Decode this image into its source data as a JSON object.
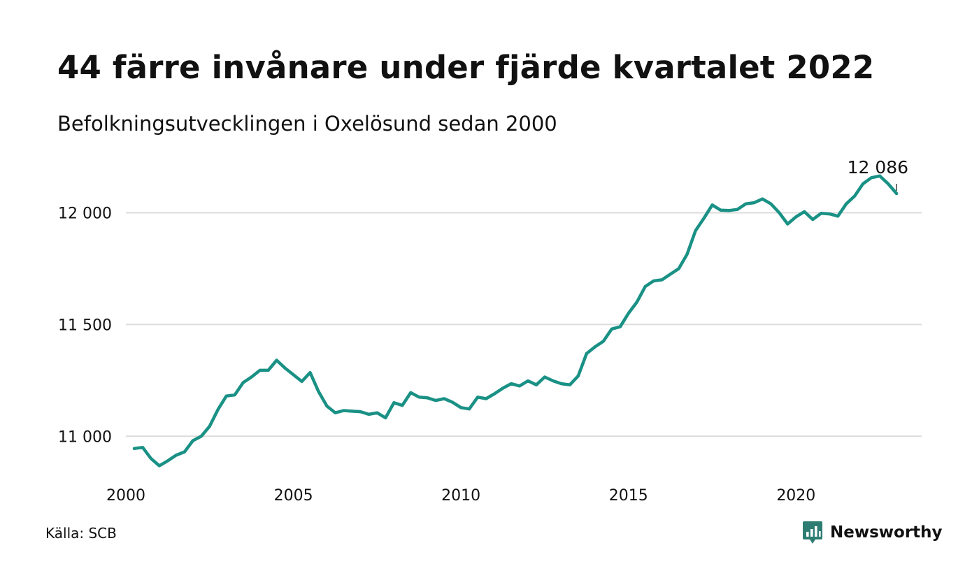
{
  "title": "44 färre invånare under fjärde kvartalet 2022",
  "subtitle": "Befolkningsutvecklingen i Oxelösund sedan 2000",
  "source": "Källa: SCB",
  "brand": {
    "name": "Newsworthy",
    "icon": "newsworthy-logo-icon"
  },
  "colors": {
    "line": "#1a9185",
    "grid": "#dcdcdc",
    "text": "#111111",
    "brand": "#2e7d73"
  },
  "chart_data": {
    "type": "line",
    "title": "44 färre invånare under fjärde kvartalet 2022",
    "subtitle": "Befolkningsutvecklingen i Oxelösund sedan 2000",
    "xlabel": "",
    "ylabel": "",
    "xlim": [
      2000,
      2023.75
    ],
    "ylim": [
      10810,
      12280
    ],
    "x_ticks": [
      2000,
      2005,
      2010,
      2015,
      2020
    ],
    "x_tick_labels": [
      "2000",
      "2005",
      "2010",
      "2015",
      "2020"
    ],
    "y_ticks": [
      11000,
      11500,
      12000
    ],
    "y_tick_labels": [
      "11 000",
      "11 500",
      "12 000"
    ],
    "grid": "horizontal",
    "end_label": "12 086",
    "series": [
      {
        "x": [
          2000.25,
          2000.5,
          2000.75,
          2001,
          2001.25,
          2001.5,
          2001.75,
          2002,
          2002.25,
          2002.5,
          2002.75,
          2003,
          2003.25,
          2003.5,
          2003.75,
          2004,
          2004.25,
          2004.5,
          2004.75,
          2005,
          2005.25,
          2005.5,
          2005.75,
          2006,
          2006.25,
          2006.5,
          2006.75,
          2007,
          2007.25,
          2007.5,
          2007.75,
          2008,
          2008.25,
          2008.5,
          2008.75,
          2009,
          2009.25,
          2009.5,
          2009.75,
          2010,
          2010.25,
          2010.5,
          2010.75,
          2011,
          2011.25,
          2011.5,
          2011.75,
          2012,
          2012.25,
          2012.5,
          2012.75,
          2013,
          2013.25,
          2013.5,
          2013.75,
          2014,
          2014.25,
          2014.5,
          2014.75,
          2015,
          2015.25,
          2015.5,
          2015.75,
          2016,
          2016.25,
          2016.5,
          2016.75,
          2017,
          2017.25,
          2017.5,
          2017.75,
          2018,
          2018.25,
          2018.5,
          2018.75,
          2019,
          2019.25,
          2019.5,
          2019.75,
          2020,
          2020.25,
          2020.5,
          2020.75,
          2021,
          2021.25,
          2021.5,
          2021.75,
          2022,
          2022.25,
          2022.5,
          2022.75,
          2023
        ],
        "values": [
          10945,
          10950,
          10900,
          10868,
          10890,
          10915,
          10930,
          10980,
          11000,
          11045,
          11120,
          11180,
          11185,
          11240,
          11265,
          11295,
          11295,
          11340,
          11305,
          11275,
          11245,
          11285,
          11200,
          11135,
          11105,
          11115,
          11112,
          11110,
          11098,
          11105,
          11082,
          11150,
          11138,
          11195,
          11175,
          11172,
          11160,
          11168,
          11152,
          11128,
          11122,
          11175,
          11168,
          11190,
          11215,
          11235,
          11225,
          11248,
          11230,
          11265,
          11248,
          11235,
          11230,
          11270,
          11370,
          11400,
          11425,
          11480,
          11490,
          11550,
          11600,
          11670,
          11695,
          11700,
          11725,
          11750,
          11815,
          11920,
          11975,
          12035,
          12012,
          12010,
          12015,
          12040,
          12045,
          12062,
          12040,
          12000,
          11950,
          11982,
          12005,
          11970,
          11998,
          11995,
          11985,
          12040,
          12075,
          12130,
          12157,
          12165,
          12130,
          12086
        ]
      }
    ]
  }
}
